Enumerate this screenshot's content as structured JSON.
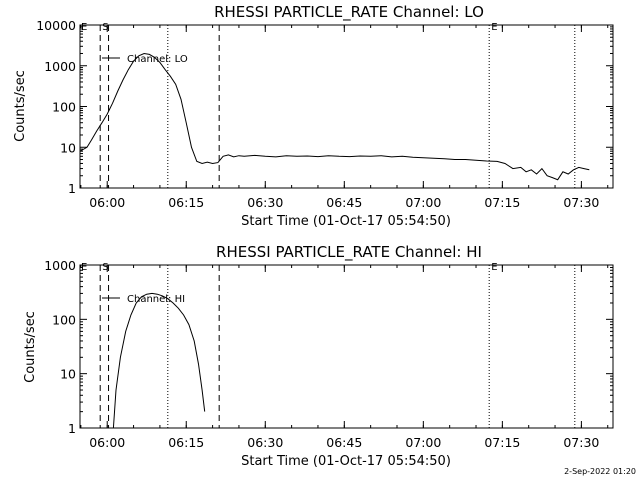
{
  "footer_timestamp": "2-Sep-2022 01:20",
  "chart_data": [
    {
      "type": "line",
      "title": "RHESSI PARTICLE_RATE Channel: LO",
      "xlabel": "Start Time (01-Oct-17 05:54:50)",
      "ylabel": "Counts/sec",
      "yscale": "log",
      "ylim": [
        1,
        10000
      ],
      "xlim": [
        "05:54:50",
        "07:36:00"
      ],
      "x_ticks": [
        "06:00",
        "06:15",
        "06:30",
        "06:45",
        "07:00",
        "07:15",
        "07:30"
      ],
      "y_ticks": [
        "1",
        "10",
        "100",
        "1000",
        "10000"
      ],
      "legend": {
        "label": "Channel: LO",
        "placement": "top-left"
      },
      "markers": [
        {
          "label": "S",
          "time": "05:58:40",
          "style": "dashed"
        },
        {
          "label": "",
          "time": "06:00:15",
          "style": "dashed"
        },
        {
          "label": "",
          "time": "06:11:30",
          "style": "dotted"
        },
        {
          "label": "",
          "time": "06:21:15",
          "style": "dashed"
        },
        {
          "label": "E",
          "time": "07:12:30",
          "style": "dotted"
        },
        {
          "label": "",
          "time": "07:28:45",
          "style": "dotted"
        }
      ],
      "series": [
        {
          "name": "Channel: LO",
          "x": [
            "05:54:50",
            "05:56:10",
            "05:57:00",
            "05:58:00",
            "05:59:00",
            "06:00:00",
            "06:01:00",
            "06:02:00",
            "06:03:00",
            "06:04:00",
            "06:05:00",
            "06:06:00",
            "06:07:00",
            "06:08:00",
            "06:09:00",
            "06:10:00",
            "06:11:00",
            "06:12:00",
            "06:13:00",
            "06:14:00",
            "06:15:00",
            "06:16:00",
            "06:17:00",
            "06:18:00",
            "06:19:00",
            "06:20:00",
            "06:21:00",
            "06:22:00",
            "06:23:00",
            "06:24:00",
            "06:25:00",
            "06:26:00",
            "06:28:00",
            "06:30:00",
            "06:32:00",
            "06:34:00",
            "06:36:00",
            "06:38:00",
            "06:40:00",
            "06:42:00",
            "06:44:00",
            "06:46:00",
            "06:48:00",
            "06:50:00",
            "06:52:00",
            "06:54:00",
            "06:56:00",
            "06:58:00",
            "07:00:00",
            "07:02:00",
            "07:04:00",
            "07:06:00",
            "07:08:00",
            "07:10:00",
            "07:12:00",
            "07:14:00",
            "07:15:30",
            "07:17:00",
            "07:18:30",
            "07:19:30",
            "07:20:30",
            "07:21:30",
            "07:22:30",
            "07:23:30",
            "07:24:30",
            "07:25:30",
            "07:26:30",
            "07:27:30",
            "07:28:30",
            "07:29:30",
            "07:30:30",
            "07:31:30"
          ],
          "values": [
            8,
            10,
            15,
            25,
            40,
            65,
            120,
            240,
            450,
            800,
            1300,
            1750,
            2000,
            1900,
            1600,
            1200,
            800,
            550,
            350,
            150,
            40,
            10,
            4.5,
            4,
            4.3,
            4,
            4.2,
            6,
            6.5,
            5.8,
            6.2,
            6,
            6.3,
            6,
            5.8,
            6.2,
            6,
            6.1,
            5.9,
            6.2,
            6,
            5.9,
            6.1,
            6,
            6.2,
            5.8,
            6,
            5.7,
            5.5,
            5.4,
            5.2,
            5,
            5,
            4.8,
            4.6,
            4.5,
            4,
            3,
            3.2,
            2.5,
            2.8,
            2.2,
            3,
            2,
            1.8,
            1.6,
            2.5,
            2.2,
            2.8,
            3.2,
            3,
            2.8
          ]
        }
      ]
    },
    {
      "type": "line",
      "title": "RHESSI PARTICLE_RATE Channel: HI",
      "xlabel": "Start Time (01-Oct-17 05:54:50)",
      "ylabel": "Counts/sec",
      "yscale": "log",
      "ylim": [
        1,
        1000
      ],
      "xlim": [
        "05:54:50",
        "07:36:00"
      ],
      "x_ticks": [
        "06:00",
        "06:15",
        "06:30",
        "06:45",
        "07:00",
        "07:15",
        "07:30"
      ],
      "y_ticks": [
        "1",
        "10",
        "100",
        "1000"
      ],
      "legend": {
        "label": "Channel: HI",
        "placement": "top-left"
      },
      "markers": [
        {
          "label": "S",
          "time": "05:58:40",
          "style": "dashed"
        },
        {
          "label": "",
          "time": "06:00:15",
          "style": "dashed"
        },
        {
          "label": "",
          "time": "06:11:30",
          "style": "dotted"
        },
        {
          "label": "",
          "time": "06:21:15",
          "style": "dashed"
        },
        {
          "label": "E",
          "time": "07:12:30",
          "style": "dotted"
        },
        {
          "label": "",
          "time": "07:28:45",
          "style": "dotted"
        }
      ],
      "series": [
        {
          "name": "Channel: HI",
          "x": [
            "06:01:10",
            "06:01:40",
            "06:02:30",
            "06:03:30",
            "06:04:30",
            "06:05:30",
            "06:06:30",
            "06:07:30",
            "06:08:30",
            "06:09:30",
            "06:10:30",
            "06:11:30",
            "06:12:30",
            "06:13:30",
            "06:14:30",
            "06:15:30",
            "06:16:30",
            "06:17:20",
            "06:18:00",
            "06:18:30"
          ],
          "values": [
            1,
            5,
            20,
            60,
            120,
            200,
            260,
            290,
            300,
            290,
            270,
            240,
            200,
            160,
            120,
            80,
            40,
            15,
            5,
            2
          ]
        }
      ]
    }
  ]
}
